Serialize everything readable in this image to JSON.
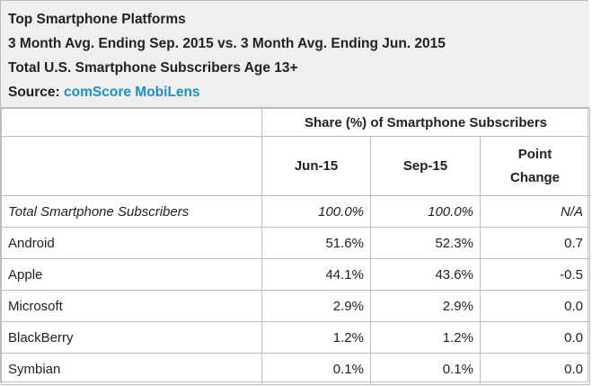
{
  "title_lines": {
    "line1": "Top Smartphone Platforms",
    "line2": "3 Month Avg. Ending Sep. 2015 vs. 3 Month Avg. Ending Jun. 2015",
    "line3": "Total U.S. Smartphone Subscribers Age 13+",
    "source_prefix": "Source:",
    "source_name": "comScore MobiLens"
  },
  "group_header": "Share (%) of Smartphone Subscribers",
  "columns": [
    "Jun-15",
    "Sep-15",
    "Point Change"
  ],
  "colors": {
    "header_bg": "#efefef",
    "border": "#bdbdbd",
    "source_link": "#1d8fc9"
  },
  "rows": [
    {
      "label": "Total Smartphone Subscribers",
      "jun": "100.0%",
      "sep": "100.0%",
      "change": "N/A"
    },
    {
      "label": "Android",
      "jun": "51.6%",
      "sep": "52.3%",
      "change": "0.7"
    },
    {
      "label": "Apple",
      "jun": "44.1%",
      "sep": "43.6%",
      "change": "-0.5"
    },
    {
      "label": "Microsoft",
      "jun": "2.9%",
      "sep": "2.9%",
      "change": "0.0"
    },
    {
      "label": "BlackBerry",
      "jun": "1.2%",
      "sep": "1.2%",
      "change": "0.0"
    },
    {
      "label": "Symbian",
      "jun": "0.1%",
      "sep": "0.1%",
      "change": "0.0"
    }
  ],
  "chart_data": {
    "type": "table",
    "title": "Top Smartphone Platforms",
    "subtitle": "3 Month Avg. Ending Sep. 2015 vs. 3 Month Avg. Ending Jun. 2015",
    "categories": [
      "Total Smartphone Subscribers",
      "Android",
      "Apple",
      "Microsoft",
      "BlackBerry",
      "Symbian"
    ],
    "series": [
      {
        "name": "Jun-15",
        "values": [
          100.0,
          51.6,
          44.1,
          2.9,
          1.2,
          0.1
        ]
      },
      {
        "name": "Sep-15",
        "values": [
          100.0,
          52.3,
          43.6,
          2.9,
          1.2,
          0.1
        ]
      },
      {
        "name": "Point Change",
        "values": [
          null,
          0.7,
          -0.5,
          0.0,
          0.0,
          0.0
        ]
      }
    ]
  }
}
